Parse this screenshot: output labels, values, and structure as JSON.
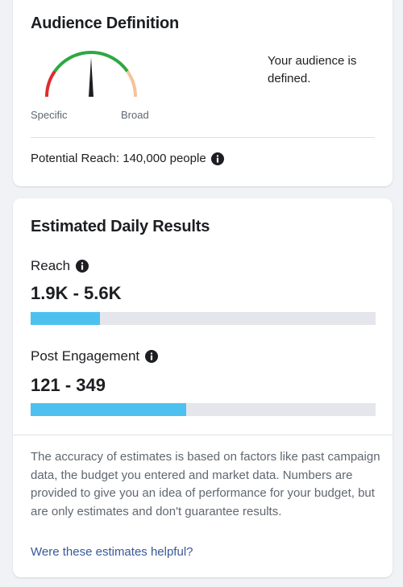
{
  "audience_card": {
    "title": "Audience Definition",
    "gauge": {
      "left_label": "Specific",
      "right_label": "Broad",
      "needle_position": 0.5,
      "colors": {
        "specific": "#e02c2c",
        "defined": "#2ea843",
        "broad": "#f6c39a"
      }
    },
    "status": "Your audience is defined.",
    "potential_reach": "Potential Reach: 140,000 people",
    "info_icon": "info-icon"
  },
  "results_card": {
    "title": "Estimated Daily Results",
    "metrics": [
      {
        "label": "Reach",
        "value": "1.9K - 5.6K",
        "bar_fraction": 0.2
      },
      {
        "label": "Post Engagement",
        "value": "121 - 349",
        "bar_fraction": 0.45
      }
    ],
    "disclaimer": "The accuracy of estimates is based on factors like past campaign data, the budget you entered and market data. Numbers are provided to give you an idea of performance for your budget, but are only estimates and don't guarantee results.",
    "feedback_link": "Were these estimates helpful?"
  },
  "colors": {
    "bar_fill": "#4cc1ef",
    "bar_track": "#e4e6eb",
    "link": "#385898"
  }
}
